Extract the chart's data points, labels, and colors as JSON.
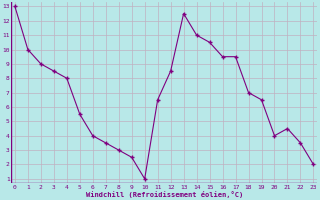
{
  "x": [
    0,
    1,
    2,
    3,
    4,
    5,
    6,
    7,
    8,
    9,
    10,
    11,
    12,
    13,
    14,
    15,
    16,
    17,
    18,
    19,
    20,
    21,
    22,
    23
  ],
  "y": [
    13,
    10,
    9,
    8.5,
    8,
    5.5,
    4,
    3.5,
    3,
    2.5,
    1,
    6.5,
    8.5,
    12.5,
    11,
    10.5,
    9.5,
    9.5,
    7,
    6.5,
    4,
    4.5,
    3.5,
    2
  ],
  "line_color": "#800080",
  "marker": "+",
  "marker_color": "#800080",
  "bg_color": "#b8e8e8",
  "grid_color": "#c0b0c0",
  "xlabel": "Windchill (Refroidissement éolien,°C)",
  "xlabel_color": "#800080",
  "tick_color": "#800080",
  "ylim": [
    1,
    13
  ],
  "xlim": [
    0,
    23
  ],
  "yticks": [
    1,
    2,
    3,
    4,
    5,
    6,
    7,
    8,
    9,
    10,
    11,
    12,
    13
  ],
  "xticks": [
    0,
    1,
    2,
    3,
    4,
    5,
    6,
    7,
    8,
    9,
    10,
    11,
    12,
    13,
    14,
    15,
    16,
    17,
    18,
    19,
    20,
    21,
    22,
    23
  ],
  "xtick_labels": [
    "0",
    "1",
    "2",
    "3",
    "4",
    "5",
    "6",
    "7",
    "8",
    "9",
    "10",
    "11",
    "12",
    "13",
    "14",
    "15",
    "16",
    "17",
    "18",
    "19",
    "20",
    "21",
    "22",
    "23"
  ]
}
